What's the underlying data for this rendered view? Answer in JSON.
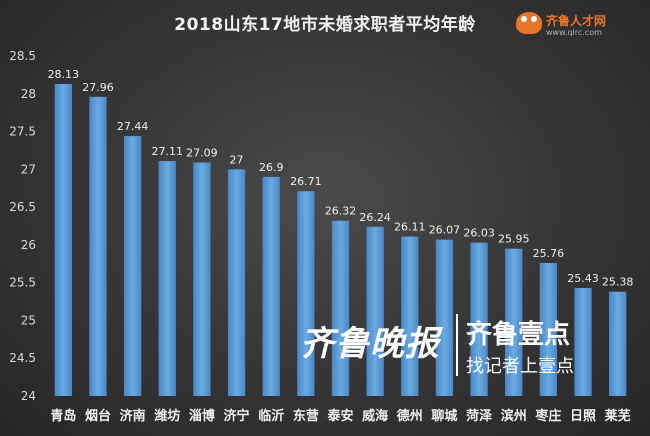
{
  "chart_data": {
    "type": "bar",
    "title": "2018山东17地市未婚求职者平均年龄",
    "categories": [
      "青岛",
      "烟台",
      "济南",
      "潍坊",
      "淄博",
      "济宁",
      "临沂",
      "东营",
      "泰安",
      "威海",
      "德州",
      "聊城",
      "菏泽",
      "滨州",
      "枣庄",
      "日照",
      "莱芜"
    ],
    "values": [
      28.13,
      27.96,
      27.44,
      27.11,
      27.09,
      27,
      26.9,
      26.71,
      26.32,
      26.24,
      26.11,
      26.07,
      26.03,
      25.95,
      25.76,
      25.43,
      25.38
    ],
    "value_labels": [
      "28.13",
      "27.96",
      "27.44",
      "27.11",
      "27.09",
      "27",
      "26.9",
      "26.71",
      "26.32",
      "26.24",
      "26.11",
      "26.07",
      "26.03",
      "25.95",
      "25.76",
      "25.43",
      "25.38"
    ],
    "ylim": [
      24,
      28.5
    ],
    "yticks": [
      24,
      24.5,
      25,
      25.5,
      26,
      26.5,
      27,
      27.5,
      28,
      28.5
    ],
    "ytick_labels": [
      "24",
      "24.5",
      "25",
      "25.5",
      "26",
      "26.5",
      "27",
      "27.5",
      "28",
      "28.5"
    ],
    "xlabel": "",
    "ylabel": "",
    "grid": false,
    "bar_color": "#5b9bd5"
  },
  "logo": {
    "name": "齐鲁人才网",
    "url": "www.qlrc.com"
  },
  "watermark": {
    "left": "齐鲁晚报",
    "right_top": "齐鲁壹点",
    "right_bottom": "找记者上壹点"
  }
}
